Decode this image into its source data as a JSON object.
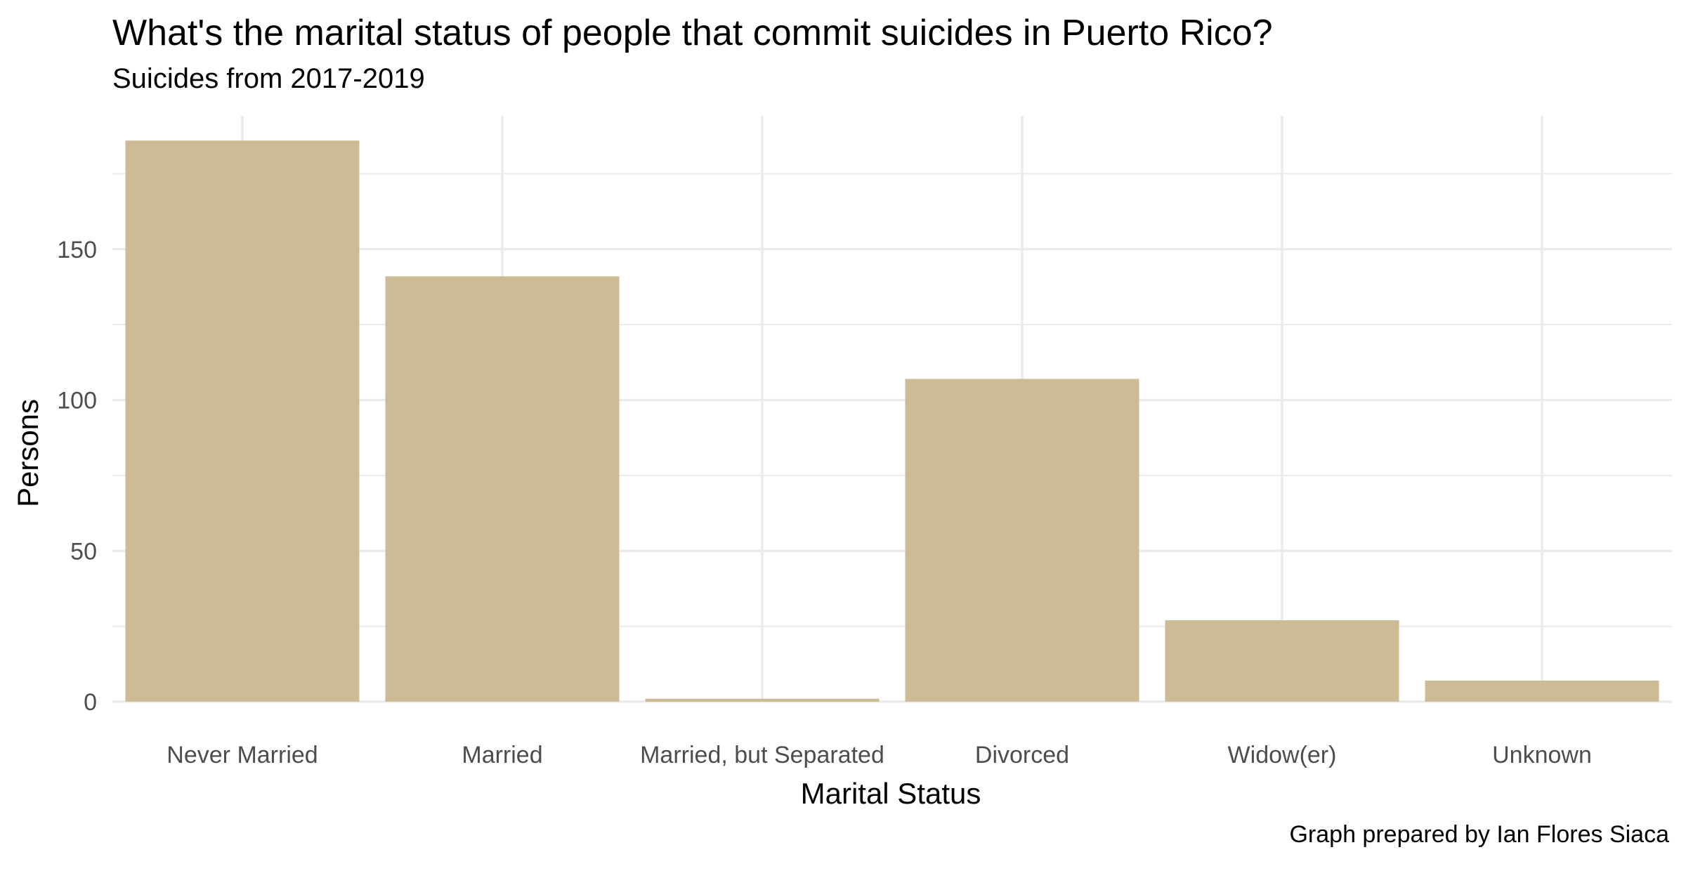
{
  "chart_data": {
    "type": "bar",
    "title": "What's the marital status of people that commit suicides in Puerto Rico?",
    "subtitle": "Suicides from 2017-2019",
    "caption": "Graph prepared by Ian Flores Siaca",
    "xlabel": "Marital Status",
    "ylabel": "Persons",
    "categories": [
      "Never Married",
      "Married",
      "Married, but Separated",
      "Divorced",
      "Widow(er)",
      "Unknown"
    ],
    "values": [
      186,
      141,
      1,
      107,
      27,
      7
    ],
    "yticks": [
      0,
      50,
      100,
      150
    ],
    "ylim": [
      0,
      195
    ],
    "grid": true,
    "legend": "none",
    "colors": {
      "bar": "#CDBB96",
      "grid": "#EBEBEB",
      "tick_label": "#4D4D4D"
    }
  }
}
